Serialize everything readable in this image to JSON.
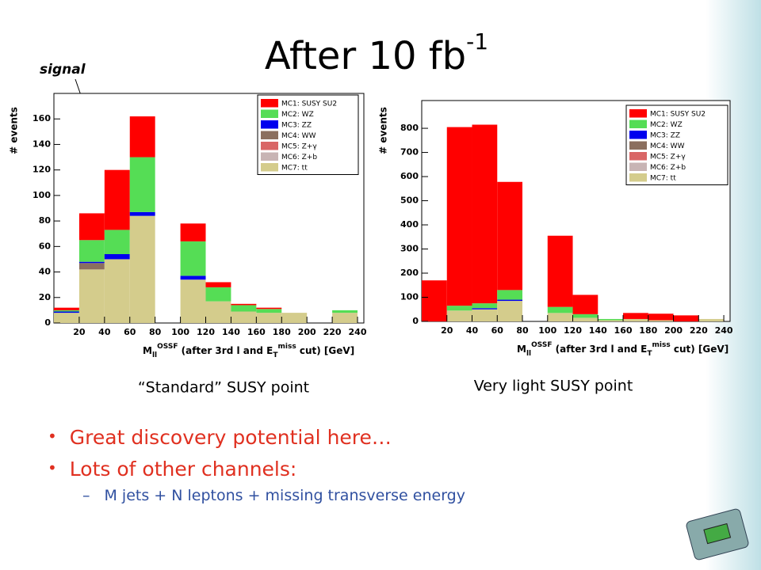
{
  "title": "After 10 fb",
  "title_sup": "-1",
  "annotations": [
    "signal",
    "signal"
  ],
  "captions": [
    "“Standard” SUSY point",
    "Very light SUSY point"
  ],
  "bullets": [
    "Great discovery potential here…",
    "Lots of other channels:"
  ],
  "sub_bullets": [
    "M jets + N leptons + missing transverse energy"
  ],
  "chart_data": [
    {
      "type": "histogram",
      "stacked": true,
      "ylabel": "# events",
      "xlabel": [
        "M",
        "ll",
        "OSSF",
        " (after 3rd l and E",
        "T",
        "miss",
        " cut) [GeV]"
      ],
      "bins": [
        0,
        20,
        40,
        60,
        80,
        100,
        120,
        140,
        160,
        180,
        200,
        220,
        240
      ],
      "xlim": [
        0,
        245
      ],
      "xticks": [
        20,
        40,
        60,
        80,
        100,
        120,
        140,
        160,
        180,
        200,
        220,
        240
      ],
      "ylim": [
        0,
        180
      ],
      "yticks": [
        0,
        20,
        40,
        60,
        80,
        100,
        120,
        140,
        160
      ],
      "legend": "upper right",
      "series": [
        {
          "name": "MC1: SUSY SU2",
          "color": "#ff0000",
          "values": [
            2,
            21,
            47,
            32,
            0,
            14,
            4,
            1,
            1,
            0,
            0,
            0
          ]
        },
        {
          "name": "MC2: WZ",
          "color": "#55dd55",
          "values": [
            1,
            17,
            19,
            43,
            0,
            27,
            11,
            5,
            3,
            0,
            0,
            2
          ]
        },
        {
          "name": "MC3: ZZ",
          "color": "#0000ee",
          "values": [
            1,
            1,
            4,
            3,
            0,
            3,
            0,
            0,
            0,
            0,
            0,
            0
          ]
        },
        {
          "name": "MC4: WW",
          "color": "#8b6f5e",
          "values": [
            0,
            5,
            0,
            0,
            0,
            0,
            0,
            0,
            0,
            0,
            0,
            0
          ]
        },
        {
          "name": "MC5: Z+γ",
          "color": "#d96666",
          "values": [
            0,
            0,
            0,
            0,
            0,
            0,
            0,
            0,
            0,
            0,
            0,
            0
          ]
        },
        {
          "name": "MC6: Z+b",
          "color": "#c8b4b4",
          "values": [
            0,
            0,
            0,
            0,
            0,
            0,
            0,
            0,
            0,
            0,
            0,
            0
          ]
        },
        {
          "name": "MC7: tt",
          "color": "#d4cc8c",
          "values": [
            8,
            42,
            50,
            84,
            0,
            34,
            17,
            9,
            8,
            8,
            0,
            8
          ]
        }
      ]
    },
    {
      "type": "histogram",
      "stacked": true,
      "ylabel": "# events",
      "xlabel": [
        "M",
        "ll",
        "OSSF",
        " (after 3rd l and E",
        "T",
        "miss",
        " cut) [GeV]"
      ],
      "bins": [
        0,
        20,
        40,
        60,
        80,
        100,
        120,
        140,
        160,
        180,
        200,
        220,
        240
      ],
      "xlim": [
        0,
        245
      ],
      "xticks": [
        20,
        40,
        60,
        80,
        100,
        120,
        140,
        160,
        180,
        200,
        220,
        240
      ],
      "ylim": [
        0,
        915
      ],
      "yticks": [
        0,
        100,
        200,
        300,
        400,
        500,
        600,
        700,
        800
      ],
      "legend": "upper right",
      "series": [
        {
          "name": "MC1: SUSY SU2",
          "color": "#ff0000",
          "values": [
            170,
            740,
            740,
            448,
            0,
            295,
            80,
            0,
            25,
            27,
            25,
            0
          ]
        },
        {
          "name": "MC2: WZ",
          "color": "#55dd55",
          "values": [
            0,
            20,
            20,
            40,
            0,
            25,
            15,
            5,
            0,
            0,
            0,
            0
          ]
        },
        {
          "name": "MC3: ZZ",
          "color": "#0000ee",
          "values": [
            0,
            0,
            5,
            5,
            0,
            0,
            0,
            0,
            0,
            0,
            0,
            0
          ]
        },
        {
          "name": "MC4: WW",
          "color": "#8b6f5e",
          "values": [
            0,
            0,
            0,
            0,
            0,
            0,
            0,
            0,
            0,
            0,
            0,
            0
          ]
        },
        {
          "name": "MC5: Z+γ",
          "color": "#d96666",
          "values": [
            0,
            0,
            0,
            0,
            0,
            0,
            0,
            0,
            0,
            0,
            0,
            0
          ]
        },
        {
          "name": "MC6: Z+b",
          "color": "#c8b4b4",
          "values": [
            0,
            0,
            0,
            0,
            0,
            0,
            0,
            0,
            0,
            0,
            0,
            0
          ]
        },
        {
          "name": "MC7: tt",
          "color": "#d4cc8c",
          "values": [
            0,
            45,
            50,
            85,
            0,
            35,
            15,
            5,
            10,
            5,
            0,
            10
          ]
        }
      ]
    }
  ]
}
